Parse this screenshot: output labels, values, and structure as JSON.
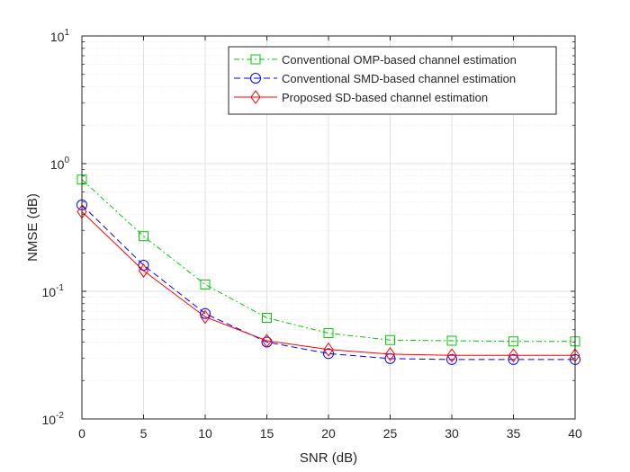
{
  "chart_data": {
    "type": "line",
    "title": "",
    "xlabel": "SNR (dB)",
    "ylabel": "NMSE (dB)",
    "xlim": [
      0,
      40
    ],
    "ylim": [
      0.01,
      10
    ],
    "yscale": "log",
    "grid": true,
    "legend_position": "top-right",
    "x": [
      0,
      5,
      10,
      15,
      20,
      25,
      30,
      35,
      40
    ],
    "x_ticks": [
      "0",
      "5",
      "10",
      "15",
      "20",
      "25",
      "30",
      "35",
      "40"
    ],
    "y_ticks": [
      {
        "value": 0.01,
        "base": "10",
        "exp": "-2"
      },
      {
        "value": 0.1,
        "base": "10",
        "exp": "-1"
      },
      {
        "value": 1,
        "base": "10",
        "exp": "0"
      },
      {
        "value": 10,
        "base": "10",
        "exp": "1"
      }
    ],
    "series": [
      {
        "name": "Conventional OMP-based channel estimation",
        "color": "#00cc00",
        "dash": "dashdot",
        "marker": "square",
        "values": [
          0.75,
          0.27,
          0.113,
          0.062,
          0.047,
          0.0415,
          0.041,
          0.0405,
          0.0405
        ]
      },
      {
        "name": "Conventional SMD-based channel estimation",
        "color": "#0000ff",
        "dash": "dashed",
        "marker": "circle",
        "values": [
          0.475,
          0.16,
          0.067,
          0.04,
          0.0325,
          0.0297,
          0.0292,
          0.0292,
          0.0292
        ]
      },
      {
        "name": "Proposed SD-based channel estimation",
        "color": "#ff0000",
        "dash": "solid",
        "marker": "diamond",
        "values": [
          0.42,
          0.145,
          0.063,
          0.041,
          0.035,
          0.0322,
          0.0315,
          0.0315,
          0.0315
        ]
      }
    ]
  }
}
